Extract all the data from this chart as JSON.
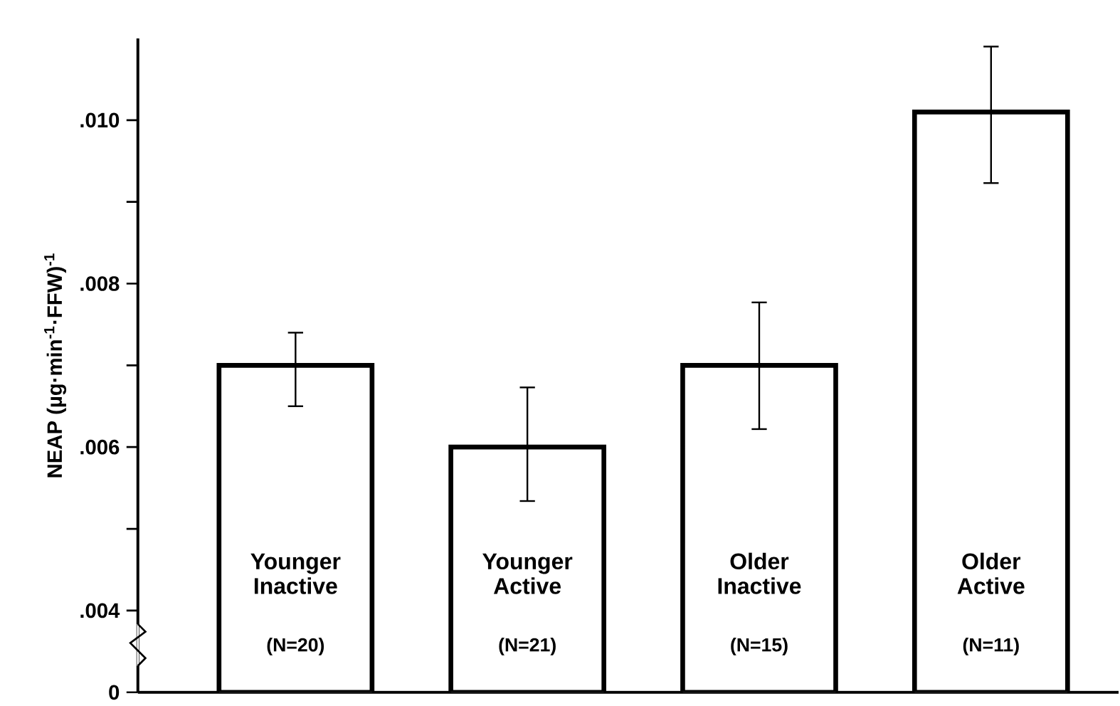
{
  "chart_data": {
    "type": "bar",
    "ylabel": "NEAP (µg·min$^{-1}$·FFW)$^{-1}$",
    "categories": [
      "Younger Inactive",
      "Younger Active",
      "Older Inactive",
      "Older Active"
    ],
    "values": [
      0.007,
      0.006,
      0.007,
      0.0101
    ],
    "errors": [
      [
        0.0065,
        0.0074
      ],
      [
        0.00534,
        0.00673
      ],
      [
        0.00622,
        0.00777
      ],
      [
        0.00923,
        0.0109
      ]
    ],
    "color": "#ffffff",
    "ylim": [
      0.003,
      0.011
    ],
    "yticks": [
      {
        "value": 0.003,
        "label": "0"
      },
      {
        "value": 0.004,
        "label": ".004"
      },
      {
        "value": 0.005,
        "label": null
      },
      {
        "value": 0.006,
        "label": ".006"
      },
      {
        "value": 0.007,
        "label": null
      },
      {
        "value": 0.008,
        "label": ".008"
      },
      {
        "value": 0.009,
        "label": null
      },
      {
        "value": 0.01,
        "label": ".010"
      }
    ],
    "annotations": [
      "(N=20)",
      "(N=21)",
      "(N=15)",
      "(N=11)"
    ],
    "grid": false
  }
}
